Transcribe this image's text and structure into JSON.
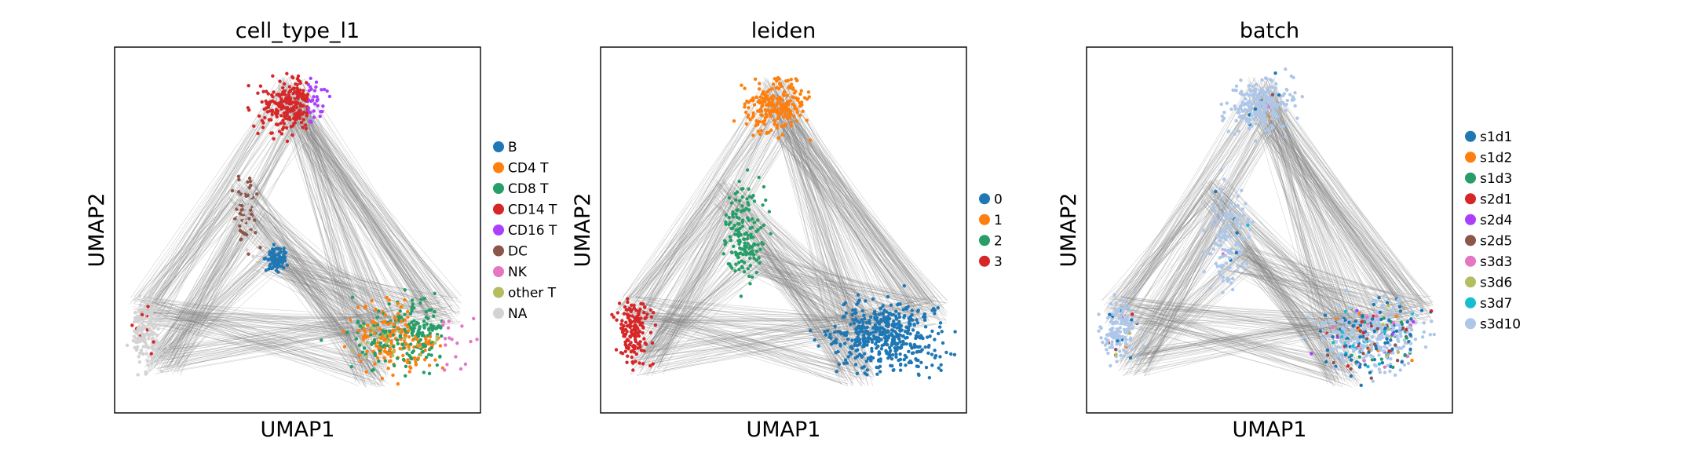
{
  "chart_data": [
    {
      "type": "scatter",
      "title": "cell_type_l1",
      "xlabel": "UMAP1",
      "ylabel": "UMAP2",
      "grid": false,
      "ticks": false,
      "legend_placement": "right, outside",
      "legend": [
        {
          "label": "B",
          "color": "#1f77b4"
        },
        {
          "label": "CD4 T",
          "color": "#ff7f0e"
        },
        {
          "label": "CD8 T",
          "color": "#279e68"
        },
        {
          "label": "CD14 T",
          "color": "#d62728"
        },
        {
          "label": "CD16 T",
          "color": "#aa40fc"
        },
        {
          "label": "DC",
          "color": "#8c564b"
        },
        {
          "label": "NK",
          "color": "#e377c2"
        },
        {
          "label": "other T",
          "color": "#b5bd61"
        },
        {
          "label": "NA",
          "color": "#d3d3d3"
        }
      ]
    },
    {
      "type": "scatter",
      "title": "leiden",
      "xlabel": "UMAP1",
      "ylabel": "UMAP2",
      "grid": false,
      "ticks": false,
      "legend_placement": "right, outside",
      "legend": [
        {
          "label": "0",
          "color": "#1f77b4"
        },
        {
          "label": "1",
          "color": "#ff7f0e"
        },
        {
          "label": "2",
          "color": "#279e68"
        },
        {
          "label": "3",
          "color": "#d62728"
        }
      ]
    },
    {
      "type": "scatter",
      "title": "batch",
      "xlabel": "UMAP1",
      "ylabel": "UMAP2",
      "grid": false,
      "ticks": false,
      "legend_placement": "right, outside",
      "legend": [
        {
          "label": "s1d1",
          "color": "#1f77b4"
        },
        {
          "label": "s1d2",
          "color": "#ff7f0e"
        },
        {
          "label": "s1d3",
          "color": "#279e68"
        },
        {
          "label": "s2d1",
          "color": "#d62728"
        },
        {
          "label": "s2d4",
          "color": "#aa40fc"
        },
        {
          "label": "s2d5",
          "color": "#8c564b"
        },
        {
          "label": "s3d3",
          "color": "#e377c2"
        },
        {
          "label": "s3d6",
          "color": "#b5bd61"
        },
        {
          "label": "s3d7",
          "color": "#17becf"
        },
        {
          "label": "s3d10",
          "color": "#aec7e8"
        }
      ]
    }
  ],
  "style": {
    "edge_color": "#808080",
    "frame_color": "#000000",
    "background": "#ffffff"
  }
}
